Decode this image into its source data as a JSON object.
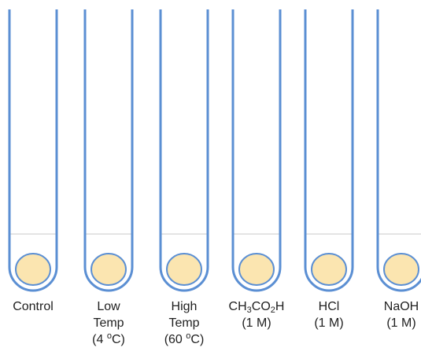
{
  "colors": {
    "tube_outline": "#5b8fd3",
    "liquid_line": "#c9c9c9",
    "bead_fill": "#fbe5b0",
    "bead_stroke": "#5b8fd3"
  },
  "tubes": [
    {
      "lines": [
        {
          "text": "Control"
        }
      ]
    },
    {
      "lines": [
        {
          "text": "Low"
        },
        {
          "text": "Temp"
        },
        {
          "pre": "(4 ",
          "sup": "o",
          "post": "C)"
        }
      ]
    },
    {
      "lines": [
        {
          "text": "High"
        },
        {
          "text": "Temp"
        },
        {
          "pre": "(60 ",
          "sup": "o",
          "post": "C)"
        }
      ]
    },
    {
      "lines": [
        {
          "chem": [
            [
              "CH",
              "3"
            ],
            [
              "CO",
              "2"
            ],
            [
              "H",
              ""
            ]
          ]
        },
        {
          "text": "(1 M)"
        }
      ]
    },
    {
      "lines": [
        {
          "text": "HCl"
        },
        {
          "text": "(1 M)"
        }
      ]
    },
    {
      "lines": [
        {
          "text": "NaOH"
        },
        {
          "text": "(1 M)"
        }
      ]
    }
  ]
}
